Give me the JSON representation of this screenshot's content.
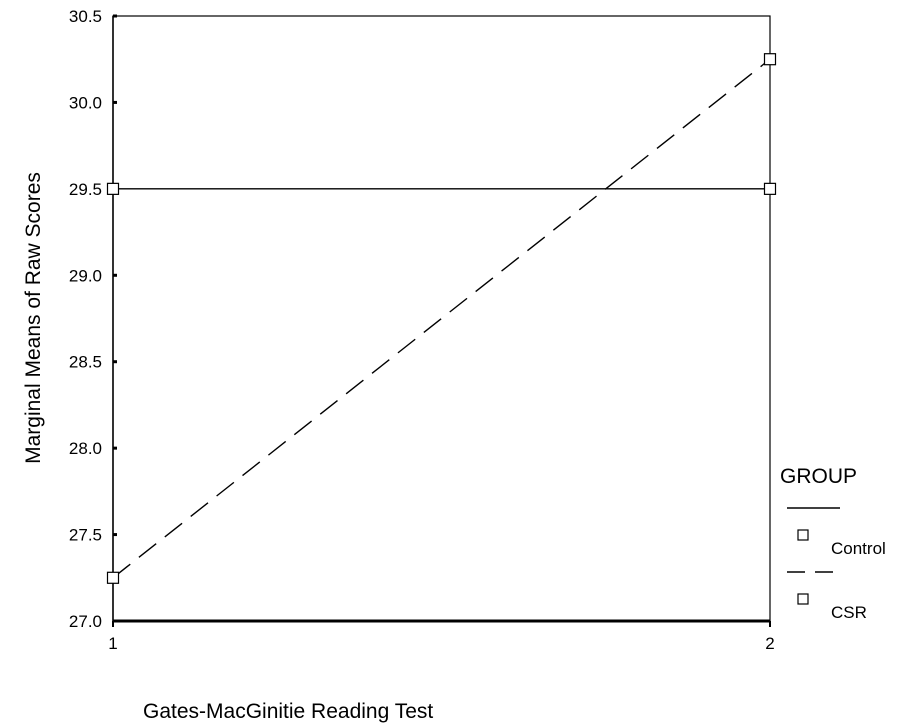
{
  "chart_data": {
    "type": "line",
    "title": "",
    "xlabel": "Gates-MacGinitie Reading Test",
    "ylabel": "Marginal Means of Raw Scores",
    "x": [
      1,
      2
    ],
    "x_tick_labels": [
      "1",
      "2"
    ],
    "xlim": [
      1,
      2
    ],
    "ylim": [
      27.0,
      30.5
    ],
    "y_ticks": [
      27.0,
      27.5,
      28.0,
      28.5,
      29.0,
      29.5,
      30.0,
      30.5
    ],
    "y_tick_labels": [
      "27.0",
      "27.5",
      "28.0",
      "28.5",
      "29.0",
      "29.5",
      "30.0",
      "30.5"
    ],
    "grid": false,
    "legend": {
      "title": "GROUP",
      "placement": "right"
    },
    "series": [
      {
        "name": "Control",
        "values": [
          29.5,
          29.5
        ],
        "line_style": "solid",
        "marker": "square"
      },
      {
        "name": "CSR",
        "values": [
          27.25,
          30.25
        ],
        "line_style": "dashed",
        "marker": "square"
      }
    ]
  }
}
